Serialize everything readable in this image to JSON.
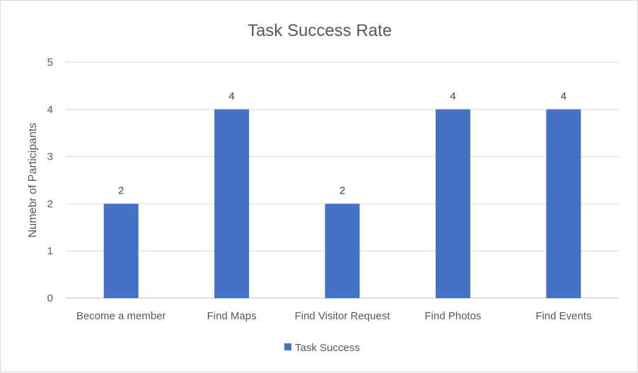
{
  "chart_data": {
    "type": "bar",
    "title": "Task Success Rate",
    "xlabel": "",
    "ylabel": "Numebr of Participants",
    "categories": [
      "Become a member",
      "Find Maps",
      "Find Visitor Request",
      "Find Photos",
      "Find Events"
    ],
    "series": [
      {
        "name": "Task Success",
        "values": [
          2,
          4,
          2,
          4,
          4
        ],
        "color": "#4472C4"
      }
    ],
    "ylim": [
      0,
      5
    ],
    "yticks": [
      0,
      1,
      2,
      3,
      4,
      5
    ],
    "grid": true,
    "data_labels": true,
    "legend": "bottom"
  }
}
